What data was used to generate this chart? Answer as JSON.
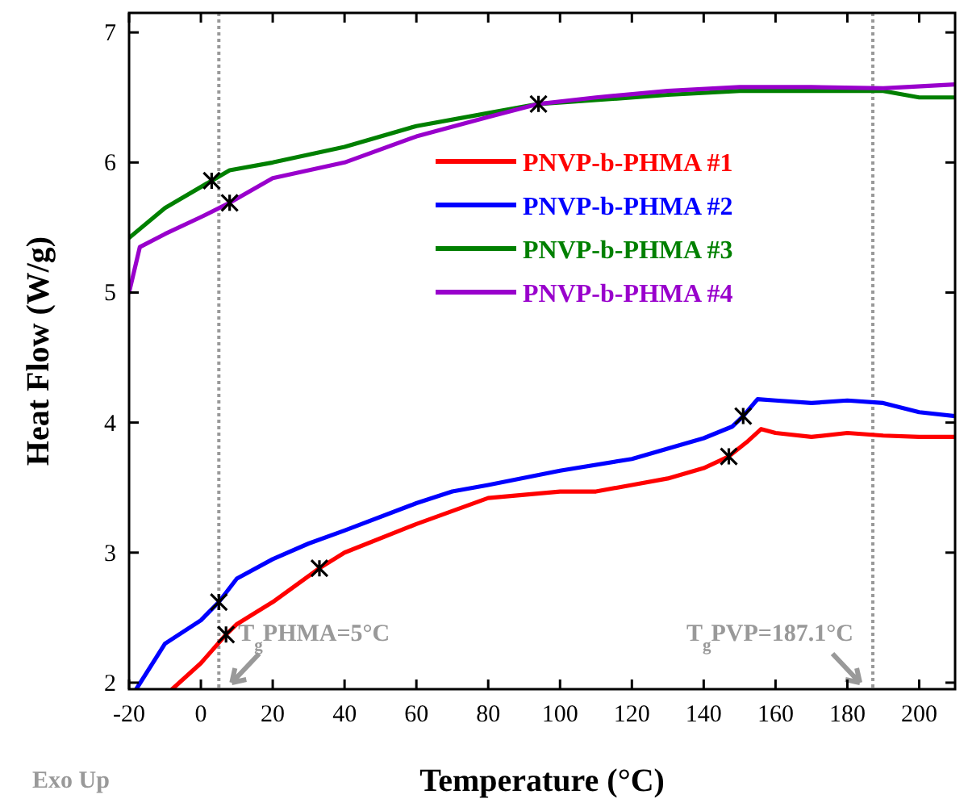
{
  "chart_data": {
    "type": "line",
    "xlabel": "Temperature (°C)",
    "ylabel": "Heat Flow (W/g)",
    "xlim": [
      -20,
      210
    ],
    "xticks": [
      -20,
      0,
      20,
      40,
      60,
      80,
      100,
      120,
      140,
      160,
      180,
      200
    ],
    "ylim": [
      1.95,
      7.15
    ],
    "yticks": [
      2,
      3,
      4,
      5,
      6,
      7
    ],
    "legend": "right",
    "marker": "none",
    "line_style": "solid",
    "grid": false,
    "series": [
      {
        "name": "PNVP-b-PHMA #1",
        "color": "#ff0000",
        "x": [
          -8,
          0,
          7,
          10,
          20,
          33,
          40,
          60,
          80,
          100,
          110,
          120,
          130,
          140,
          147,
          152,
          156,
          160,
          170,
          180,
          190,
          200,
          210
        ],
        "values": [
          1.95,
          2.15,
          2.37,
          2.45,
          2.62,
          2.88,
          3.0,
          3.22,
          3.42,
          3.47,
          3.47,
          3.52,
          3.57,
          3.65,
          3.74,
          3.85,
          3.95,
          3.92,
          3.89,
          3.92,
          3.9,
          3.89,
          3.89
        ]
      },
      {
        "name": "PNVP-b-PHMA #2",
        "color": "#0000ff",
        "x": [
          -18,
          -10,
          0,
          5,
          10,
          20,
          30,
          40,
          60,
          70,
          80,
          100,
          120,
          140,
          148,
          151,
          155,
          160,
          170,
          180,
          190,
          200,
          210
        ],
        "values": [
          1.95,
          2.3,
          2.48,
          2.62,
          2.8,
          2.95,
          3.07,
          3.17,
          3.38,
          3.47,
          3.52,
          3.63,
          3.72,
          3.88,
          3.97,
          4.05,
          4.18,
          4.17,
          4.15,
          4.17,
          4.15,
          4.08,
          4.05
        ]
      },
      {
        "name": "PNVP-b-PHMA #3",
        "color": "#008000",
        "x": [
          -20,
          -10,
          3,
          8,
          20,
          40,
          60,
          80,
          94,
          110,
          130,
          150,
          170,
          190,
          200,
          210
        ],
        "values": [
          5.42,
          5.65,
          5.86,
          5.94,
          6.0,
          6.12,
          6.28,
          6.38,
          6.45,
          6.48,
          6.52,
          6.55,
          6.55,
          6.55,
          6.5,
          6.5
        ]
      },
      {
        "name": "PNVP-b-PHMA #4",
        "color": "#9900cc",
        "x": [
          -20,
          -17,
          -10,
          0,
          8,
          20,
          40,
          60,
          80,
          94,
          110,
          130,
          150,
          170,
          190,
          210
        ],
        "values": [
          5.0,
          5.35,
          5.45,
          5.58,
          5.69,
          5.88,
          6.0,
          6.2,
          6.35,
          6.45,
          6.5,
          6.55,
          6.58,
          6.58,
          6.57,
          6.6
        ]
      },
      {
        "type": "scatter",
        "marker": "cross",
        "color": "#000000",
        "x": [
          3,
          8,
          94,
          5,
          7,
          33,
          147,
          151
        ],
        "values": [
          5.86,
          5.69,
          6.45,
          2.62,
          2.37,
          2.88,
          3.74,
          4.05
        ]
      }
    ],
    "ref_lines": [
      {
        "axis": "x",
        "value": 5,
        "label": "T$_{g}$PHMA=5°C",
        "color": "#999999",
        "line_style": "dotted"
      },
      {
        "axis": "x",
        "value": 187.1,
        "label": "T$_{g}$PVP=187.1°C",
        "color": "#999999",
        "line_style": "dotted"
      }
    ],
    "annotations": [
      "Exo Up"
    ]
  }
}
